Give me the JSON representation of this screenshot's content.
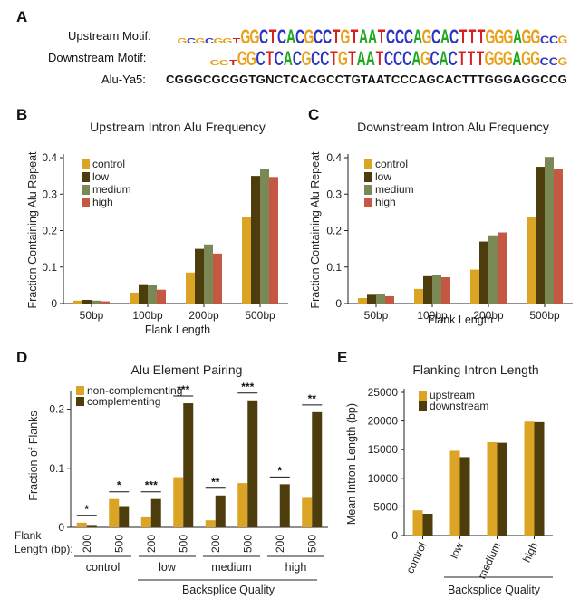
{
  "colors": {
    "control": "#dca424",
    "low": "#4e3d0c",
    "medium": "#7a8856",
    "high": "#c55842",
    "noncomp": "#dca424",
    "comp": "#4e3d0c",
    "upstream": "#dca424",
    "downstream": "#4e3d0c",
    "A": "#1ba81b",
    "C": "#2a35c2",
    "G": "#e8a017",
    "T": "#d42020"
  },
  "panel_a": {
    "label": "A",
    "upstream_label": "Upstream Motif:",
    "downstream_label": "Downstream Motif:",
    "alu_label": "Alu-Ya5:",
    "alu_sequence": "CGGGCGCGGTGNCTCACGCCTGTAATCCCAGCACTTTGGGAGGCCG",
    "upstream_motif": "GCGCGGTGGCTCACGCCTGTAATCCCAGCACTTTGGGAGGCCG",
    "downstream_motif": "GGTGGCTCACGCCTGTAATCCCAGCACTTTGGGAGGCCG"
  },
  "chart_data": [
    {
      "panel": "B",
      "type": "bar",
      "title": "Upstream Intron Alu Frequency",
      "xlabel": "Flank Length",
      "ylabel": "Fraction Containing Alu Repeat",
      "categories": [
        "50bp",
        "100bp",
        "200bp",
        "500bp"
      ],
      "ylim": [
        0,
        0.4
      ],
      "yticks": [
        "0",
        "0.1",
        "0.2",
        "0.3",
        "0.4"
      ],
      "legend_position": "top-left",
      "series": [
        {
          "name": "control",
          "values": [
            0.008,
            0.03,
            0.085,
            0.238
          ]
        },
        {
          "name": "low",
          "values": [
            0.01,
            0.053,
            0.15,
            0.35
          ]
        },
        {
          "name": "medium",
          "values": [
            0.008,
            0.051,
            0.162,
            0.368
          ]
        },
        {
          "name": "high",
          "values": [
            0.006,
            0.038,
            0.137,
            0.347
          ]
        }
      ]
    },
    {
      "panel": "C",
      "type": "bar",
      "title": "Downstream Intron Alu Frequency",
      "xlabel": "Flank Length",
      "ylabel": "Fraction Containing Alu Repeat",
      "categories": [
        "50bp",
        "100bp",
        "200bp",
        "500bp"
      ],
      "ylim": [
        0,
        0.4
      ],
      "yticks": [
        "0",
        "0.1",
        "0.2",
        "0.3",
        "0.4"
      ],
      "legend_position": "top-left",
      "series": [
        {
          "name": "control",
          "values": [
            0.015,
            0.04,
            0.093,
            0.236
          ]
        },
        {
          "name": "low",
          "values": [
            0.024,
            0.075,
            0.17,
            0.375
          ]
        },
        {
          "name": "medium",
          "values": [
            0.025,
            0.078,
            0.187,
            0.402
          ]
        },
        {
          "name": "high",
          "values": [
            0.02,
            0.072,
            0.195,
            0.37
          ]
        }
      ]
    },
    {
      "panel": "D",
      "type": "bar",
      "title": "Alu Element Pairing",
      "ylabel": "Fraction of Flanks",
      "xlabel": "Backsplice Quality",
      "flank_label": "Flank\nLength (bp):",
      "groups": [
        "control",
        "low",
        "medium",
        "high"
      ],
      "flank_lengths": [
        "200",
        "500"
      ],
      "ylim": [
        0,
        0.23
      ],
      "yticks": [
        "0",
        "0.1",
        "0.2"
      ],
      "legend_position": "top-left",
      "series": [
        {
          "name": "non-complementing",
          "values": [
            0.008,
            0.048,
            0.017,
            0.085,
            0.012,
            0.075,
            0.0,
            0.05
          ]
        },
        {
          "name": "complementing",
          "values": [
            0.004,
            0.036,
            0.048,
            0.21,
            0.054,
            0.215,
            0.073,
            0.195
          ]
        }
      ],
      "significance": [
        "*",
        "*",
        "***",
        "***",
        "**",
        "***",
        "*",
        "**"
      ]
    },
    {
      "panel": "E",
      "type": "bar",
      "title": "Flanking Intron Length",
      "ylabel": "Mean Intron Length (bp)",
      "xlabel": "Backsplice Quality",
      "categories": [
        "control",
        "low",
        "medium",
        "high"
      ],
      "ylim": [
        0,
        25000
      ],
      "yticks": [
        "0",
        "5000",
        "10000",
        "15000",
        "20000",
        "25000"
      ],
      "legend_position": "top-left",
      "series": [
        {
          "name": "upstream",
          "values": [
            4400,
            14800,
            16300,
            19900
          ]
        },
        {
          "name": "downstream",
          "values": [
            3800,
            13700,
            16200,
            19800
          ]
        }
      ]
    }
  ]
}
